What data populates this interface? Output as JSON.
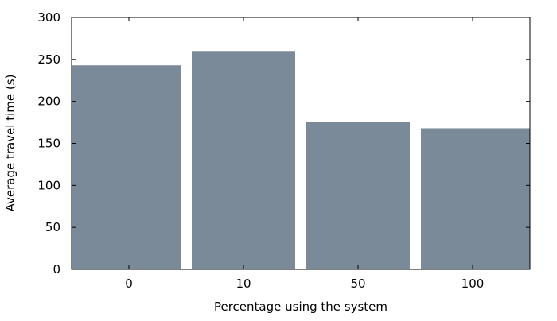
{
  "chart_data": {
    "type": "bar",
    "categories": [
      "0",
      "10",
      "50",
      "100"
    ],
    "values": [
      243,
      260,
      176,
      168
    ],
    "title": "",
    "xlabel": "Percentage using the system",
    "ylabel": "Average travel time (s)",
    "ylim": [
      0,
      300
    ],
    "yticks": [
      0,
      50,
      100,
      150,
      200,
      250,
      300
    ],
    "grid": false,
    "legend": "none",
    "bar_color": "#7a8a99",
    "axis_color": "#000000"
  }
}
